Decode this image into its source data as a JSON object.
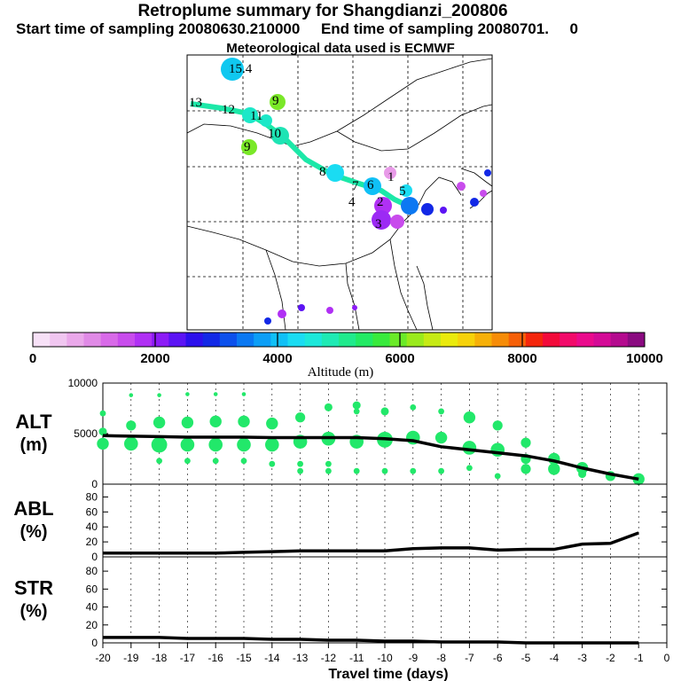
{
  "header": {
    "title": "Retroplume summary for Shangdianzi_200806",
    "subtitle": "Start time of sampling 20080630.210000     End time of sampling 20080701.     0",
    "met": "Meteorological data used is ECMWF"
  },
  "colors": {
    "plume": "#22e86a",
    "line": "#000000",
    "colorbar": [
      "#f7e1f7",
      "#f0c6f0",
      "#eaa8ea",
      "#e08ae6",
      "#d86ae8",
      "#c84cec",
      "#b030f4",
      "#8c1cf6",
      "#5c14f4",
      "#2c10ec",
      "#1228e6",
      "#0c50ec",
      "#0a78f2",
      "#0c9ef6",
      "#10c0f6",
      "#1adcf2",
      "#1ce8da",
      "#1eeab4",
      "#20ea8c",
      "#22ea64",
      "#38ea3c",
      "#6aea28",
      "#9aea1c",
      "#c6ea14",
      "#eaea0c",
      "#f6d20a",
      "#f6b008",
      "#f68c08",
      "#f66008",
      "#f4260c",
      "#f20a3a",
      "#f20a6a",
      "#ea0a8c",
      "#d40a96",
      "#b40a8e",
      "#8a0a80"
    ]
  },
  "map": {
    "labels": [
      {
        "t": "15.4",
        "c": "#10c0f6"
      },
      {
        "t": "13",
        "c": "#1ce8da"
      },
      {
        "t": "12",
        "c": "#1ce8da"
      },
      {
        "t": "11",
        "c": "#1ce8da"
      },
      {
        "t": "10",
        "c": "#1eeab4"
      },
      {
        "t": "9",
        "c": "#6aea28"
      },
      {
        "t": "9",
        "c": "#6aea28"
      },
      {
        "t": "8",
        "c": "#1ce8da"
      },
      {
        "t": "7",
        "c": "#10c0f6"
      },
      {
        "t": "6",
        "c": "#10c0f6"
      },
      {
        "t": "5",
        "c": "#1ce8da"
      },
      {
        "t": "4",
        "c": "#1228e6"
      },
      {
        "t": "3",
        "c": "#b030f4"
      },
      {
        "t": "2",
        "c": "#b030f4"
      },
      {
        "t": "1",
        "c": "#d86ae8"
      }
    ]
  },
  "colorbar": {
    "ticks": [
      "0",
      "2000",
      "4000",
      "6000",
      "8000",
      "10000"
    ],
    "label": "Altitude (m)"
  },
  "chart_data": [
    {
      "type": "line",
      "panel": "ALT",
      "ylabel_top": "ALT",
      "ylabel_bottom": "(m)",
      "ylim": [
        0,
        10000
      ],
      "yticks": [
        "10000",
        "5000",
        "0"
      ],
      "x": [
        -20,
        -19,
        -18,
        -17,
        -16,
        -15,
        -14,
        -13,
        -12,
        -11,
        -10,
        -9,
        -8,
        -7,
        -6,
        -5,
        -4,
        -3,
        -2,
        -1
      ],
      "values": [
        4800,
        4750,
        4700,
        4650,
        4650,
        4650,
        4600,
        4600,
        4600,
        4600,
        4500,
        4300,
        3700,
        3400,
        3100,
        2800,
        2300,
        1600,
        1000,
        500
      ],
      "plume_points": [
        {
          "x": -20,
          "y": 7000,
          "s": 2
        },
        {
          "x": -20,
          "y": 5200,
          "s": 3
        },
        {
          "x": -20,
          "y": 4000,
          "s": 5
        },
        {
          "x": -19,
          "y": 5800,
          "s": 4
        },
        {
          "x": -19,
          "y": 4000,
          "s": 6
        },
        {
          "x": -19,
          "y": 8800,
          "s": 1
        },
        {
          "x": -18,
          "y": 6100,
          "s": 5
        },
        {
          "x": -18,
          "y": 3900,
          "s": 7
        },
        {
          "x": -18,
          "y": 2300,
          "s": 2
        },
        {
          "x": -18,
          "y": 8800,
          "s": 1
        },
        {
          "x": -17,
          "y": 6100,
          "s": 5
        },
        {
          "x": -17,
          "y": 3900,
          "s": 6
        },
        {
          "x": -17,
          "y": 2300,
          "s": 2
        },
        {
          "x": -17,
          "y": 8900,
          "s": 1
        },
        {
          "x": -16,
          "y": 6200,
          "s": 5
        },
        {
          "x": -16,
          "y": 3900,
          "s": 6
        },
        {
          "x": -16,
          "y": 2300,
          "s": 2
        },
        {
          "x": -16,
          "y": 8900,
          "s": 1
        },
        {
          "x": -15,
          "y": 6200,
          "s": 5
        },
        {
          "x": -15,
          "y": 3900,
          "s": 6
        },
        {
          "x": -15,
          "y": 2300,
          "s": 2
        },
        {
          "x": -15,
          "y": 8900,
          "s": 1
        },
        {
          "x": -14,
          "y": 6000,
          "s": 5
        },
        {
          "x": -14,
          "y": 3900,
          "s": 6
        },
        {
          "x": -14,
          "y": 2000,
          "s": 2
        },
        {
          "x": -13,
          "y": 6600,
          "s": 4
        },
        {
          "x": -13,
          "y": 4200,
          "s": 6
        },
        {
          "x": -13,
          "y": 2000,
          "s": 2
        },
        {
          "x": -13,
          "y": 1300,
          "s": 2
        },
        {
          "x": -12,
          "y": 7600,
          "s": 3
        },
        {
          "x": -12,
          "y": 4500,
          "s": 6
        },
        {
          "x": -12,
          "y": 2000,
          "s": 2
        },
        {
          "x": -12,
          "y": 1300,
          "s": 2
        },
        {
          "x": -11,
          "y": 7800,
          "s": 3
        },
        {
          "x": -11,
          "y": 7200,
          "s": 2
        },
        {
          "x": -11,
          "y": 4200,
          "s": 6
        },
        {
          "x": -11,
          "y": 1300,
          "s": 2
        },
        {
          "x": -10,
          "y": 7200,
          "s": 3
        },
        {
          "x": -10,
          "y": 4400,
          "s": 7
        },
        {
          "x": -10,
          "y": 1300,
          "s": 2
        },
        {
          "x": -9,
          "y": 7600,
          "s": 2
        },
        {
          "x": -9,
          "y": 4600,
          "s": 6
        },
        {
          "x": -9,
          "y": 1300,
          "s": 2
        },
        {
          "x": -8,
          "y": 7200,
          "s": 2
        },
        {
          "x": -8,
          "y": 4600,
          "s": 5
        },
        {
          "x": -8,
          "y": 1300,
          "s": 2
        },
        {
          "x": -7,
          "y": 6600,
          "s": 5
        },
        {
          "x": -7,
          "y": 3600,
          "s": 6
        },
        {
          "x": -7,
          "y": 1600,
          "s": 2
        },
        {
          "x": -6,
          "y": 5800,
          "s": 4
        },
        {
          "x": -6,
          "y": 3400,
          "s": 6
        },
        {
          "x": -6,
          "y": 800,
          "s": 2
        },
        {
          "x": -5,
          "y": 4100,
          "s": 4
        },
        {
          "x": -5,
          "y": 2500,
          "s": 4
        },
        {
          "x": -5,
          "y": 1500,
          "s": 4
        },
        {
          "x": -4,
          "y": 2500,
          "s": 5
        },
        {
          "x": -4,
          "y": 1500,
          "s": 5
        },
        {
          "x": -3,
          "y": 1600,
          "s": 5
        },
        {
          "x": -3,
          "y": 1000,
          "s": 3
        },
        {
          "x": -2,
          "y": 800,
          "s": 4
        },
        {
          "x": -1,
          "y": 500,
          "s": 5
        }
      ]
    },
    {
      "type": "line",
      "panel": "ABL",
      "ylabel_top": "ABL",
      "ylabel_bottom": "(%)",
      "ylim": [
        0,
        90
      ],
      "yticks": [
        "80",
        "60",
        "40",
        "20",
        "0"
      ],
      "x": [
        -20,
        -19,
        -18,
        -17,
        -16,
        -15,
        -14,
        -13,
        -12,
        -11,
        -10,
        -9,
        -8,
        -7,
        -6,
        -5,
        -4,
        -3,
        -2,
        -1
      ],
      "values": [
        5,
        5,
        5,
        5,
        5,
        6,
        7,
        8,
        8,
        8,
        8,
        11,
        12,
        12,
        9,
        10,
        10,
        17,
        18,
        32
      ]
    },
    {
      "type": "line",
      "panel": "STR",
      "ylabel_top": "STR",
      "ylabel_bottom": "(%)",
      "ylim": [
        0,
        90
      ],
      "yticks": [
        "80",
        "60",
        "40",
        "20",
        "0"
      ],
      "x": [
        -20,
        -19,
        -18,
        -17,
        -16,
        -15,
        -14,
        -13,
        -12,
        -11,
        -10,
        -9,
        -8,
        -7,
        -6,
        -5,
        -4,
        -3,
        -2,
        -1
      ],
      "values": [
        6,
        6,
        6,
        5,
        5,
        5,
        4,
        4,
        3,
        3,
        2,
        2,
        1,
        1,
        1,
        0,
        0,
        0,
        0,
        0
      ]
    }
  ],
  "xaxis": {
    "label": "Travel time (days)",
    "ticks": [
      "-20",
      "-19",
      "-18",
      "-17",
      "-16",
      "-15",
      "-14",
      "-13",
      "-12",
      "-11",
      "-10",
      "-9",
      "-8",
      "-7",
      "-6",
      "-5",
      "-4",
      "-3",
      "-2",
      "-1",
      "0"
    ]
  }
}
